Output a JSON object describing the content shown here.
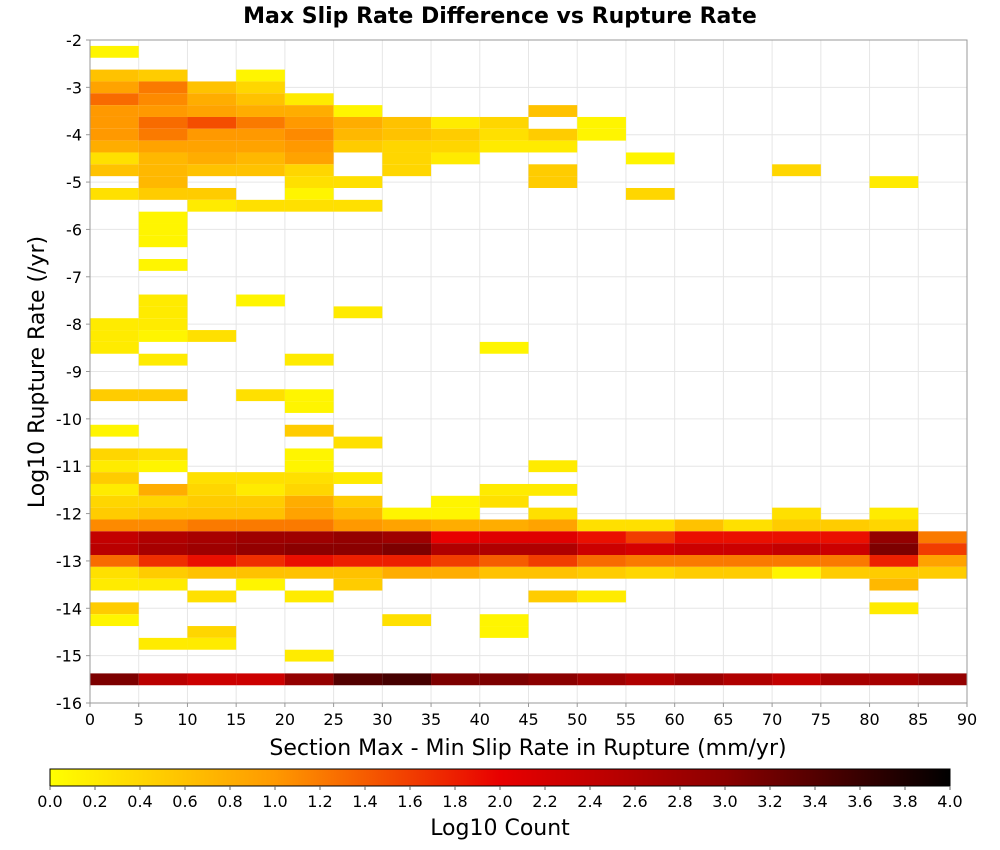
{
  "chart_data": {
    "type": "heatmap",
    "title": "Max Slip Rate Difference vs Rupture Rate",
    "xlabel": "Section Max - Min Slip Rate in Rupture (mm/yr)",
    "ylabel": "Log10 Rupture Rate (/yr)",
    "colorbar_label": "Log10 Count",
    "xlim": [
      0,
      90
    ],
    "ylim": [
      -16,
      -2
    ],
    "x_bin_width": 5,
    "y_bin_height": 0.25,
    "x_ticks": [
      "0",
      "5",
      "10",
      "15",
      "20",
      "25",
      "30",
      "35",
      "40",
      "45",
      "50",
      "55",
      "60",
      "65",
      "70",
      "75",
      "80",
      "85",
      "90"
    ],
    "y_ticks": [
      "-2",
      "-3",
      "-4",
      "-5",
      "-6",
      "-7",
      "-8",
      "-9",
      "-10",
      "-11",
      "-12",
      "-13",
      "-14",
      "-15",
      "-16"
    ],
    "colorbar_range": [
      0,
      4
    ],
    "colorbar_ticks": [
      "0.0",
      "0.2",
      "0.4",
      "0.6",
      "0.8",
      "1.0",
      "1.2",
      "1.4",
      "1.6",
      "1.8",
      "2.0",
      "2.2",
      "2.4",
      "2.6",
      "2.8",
      "3.0",
      "3.2",
      "3.4",
      "3.6",
      "3.8",
      "4.0"
    ],
    "colorscale": [
      "#ffff00",
      "#ff9900",
      "#e80000",
      "#8b0000",
      "#000000"
    ],
    "grid": true,
    "cells": [
      [
        0,
        -2.25,
        0.1
      ],
      [
        0,
        -2.75,
        0.6
      ],
      [
        5,
        -2.75,
        0.5
      ],
      [
        15,
        -2.75,
        0.1
      ],
      [
        0,
        -3.0,
        0.9
      ],
      [
        5,
        -3.0,
        1.2
      ],
      [
        10,
        -3.0,
        0.6
      ],
      [
        15,
        -3.0,
        0.4
      ],
      [
        0,
        -3.25,
        1.3
      ],
      [
        5,
        -3.25,
        1.1
      ],
      [
        10,
        -3.25,
        0.8
      ],
      [
        15,
        -3.25,
        0.6
      ],
      [
        20,
        -3.25,
        0.2
      ],
      [
        0,
        -3.5,
        1.0
      ],
      [
        5,
        -3.5,
        1.0
      ],
      [
        10,
        -3.5,
        0.9
      ],
      [
        15,
        -3.5,
        0.8
      ],
      [
        20,
        -3.5,
        0.8
      ],
      [
        25,
        -3.5,
        0.1
      ],
      [
        45,
        -3.5,
        0.6
      ],
      [
        0,
        -3.75,
        1.0
      ],
      [
        5,
        -3.75,
        1.3
      ],
      [
        10,
        -3.75,
        1.5
      ],
      [
        15,
        -3.75,
        1.2
      ],
      [
        20,
        -3.75,
        1.0
      ],
      [
        25,
        -3.75,
        0.8
      ],
      [
        30,
        -3.75,
        0.6
      ],
      [
        35,
        -3.75,
        0.2
      ],
      [
        40,
        -3.75,
        0.4
      ],
      [
        50,
        -3.75,
        0.1
      ],
      [
        0,
        -4.0,
        1.0
      ],
      [
        5,
        -4.0,
        1.2
      ],
      [
        10,
        -4.0,
        1.0
      ],
      [
        15,
        -4.0,
        1.0
      ],
      [
        20,
        -4.0,
        1.1
      ],
      [
        25,
        -4.0,
        0.7
      ],
      [
        30,
        -4.0,
        0.6
      ],
      [
        35,
        -4.0,
        0.5
      ],
      [
        40,
        -4.0,
        0.3
      ],
      [
        45,
        -4.0,
        0.5
      ],
      [
        50,
        -4.0,
        0.1
      ],
      [
        0,
        -4.25,
        0.8
      ],
      [
        5,
        -4.25,
        0.9
      ],
      [
        10,
        -4.25,
        0.9
      ],
      [
        15,
        -4.25,
        0.9
      ],
      [
        20,
        -4.25,
        1.0
      ],
      [
        25,
        -4.25,
        0.5
      ],
      [
        30,
        -4.25,
        0.4
      ],
      [
        35,
        -4.25,
        0.4
      ],
      [
        40,
        -4.25,
        0.2
      ],
      [
        45,
        -4.25,
        0.2
      ],
      [
        0,
        -4.5,
        0.3
      ],
      [
        5,
        -4.5,
        0.7
      ],
      [
        10,
        -4.5,
        0.8
      ],
      [
        15,
        -4.5,
        0.7
      ],
      [
        20,
        -4.5,
        0.9
      ],
      [
        30,
        -4.5,
        0.4
      ],
      [
        35,
        -4.5,
        0.2
      ],
      [
        55,
        -4.5,
        0.1
      ],
      [
        0,
        -4.75,
        0.6
      ],
      [
        5,
        -4.75,
        0.7
      ],
      [
        10,
        -4.75,
        0.6
      ],
      [
        15,
        -4.75,
        0.6
      ],
      [
        20,
        -4.75,
        0.4
      ],
      [
        30,
        -4.75,
        0.4
      ],
      [
        45,
        -4.75,
        0.5
      ],
      [
        70,
        -4.75,
        0.4
      ],
      [
        5,
        -5.0,
        0.7
      ],
      [
        20,
        -5.0,
        0.3
      ],
      [
        25,
        -5.0,
        0.3
      ],
      [
        45,
        -5.0,
        0.5
      ],
      [
        80,
        -5.0,
        0.2
      ],
      [
        0,
        -5.25,
        0.3
      ],
      [
        5,
        -5.25,
        0.5
      ],
      [
        10,
        -5.25,
        0.5
      ],
      [
        20,
        -5.25,
        0.1
      ],
      [
        55,
        -5.25,
        0.4
      ],
      [
        10,
        -5.5,
        0.2
      ],
      [
        15,
        -5.5,
        0.3
      ],
      [
        20,
        -5.5,
        0.3
      ],
      [
        25,
        -5.5,
        0.3
      ],
      [
        5,
        -5.75,
        0.1
      ],
      [
        5,
        -6.0,
        0.1
      ],
      [
        5,
        -6.25,
        0.1
      ],
      [
        5,
        -6.75,
        0.1
      ],
      [
        15,
        -7.5,
        0.1
      ],
      [
        5,
        -7.5,
        0.2
      ],
      [
        5,
        -7.75,
        0.2
      ],
      [
        25,
        -7.75,
        0.2
      ],
      [
        0,
        -8.0,
        0.2
      ],
      [
        5,
        -8.0,
        0.2
      ],
      [
        0,
        -8.25,
        0.2
      ],
      [
        5,
        -8.25,
        0.1
      ],
      [
        10,
        -8.25,
        0.3
      ],
      [
        0,
        -8.5,
        0.2
      ],
      [
        40,
        -8.5,
        0.1
      ],
      [
        5,
        -8.75,
        0.2
      ],
      [
        20,
        -8.75,
        0.2
      ],
      [
        0,
        -9.5,
        0.5
      ],
      [
        5,
        -9.5,
        0.5
      ],
      [
        15,
        -9.5,
        0.3
      ],
      [
        20,
        -9.5,
        0.1
      ],
      [
        20,
        -9.75,
        0.1
      ],
      [
        0,
        -10.25,
        0.1
      ],
      [
        20,
        -10.25,
        0.5
      ],
      [
        25,
        -10.5,
        0.3
      ],
      [
        0,
        -10.75,
        0.4
      ],
      [
        5,
        -10.75,
        0.3
      ],
      [
        20,
        -10.75,
        0.1
      ],
      [
        0,
        -11.0,
        0.2
      ],
      [
        5,
        -11.0,
        0.1
      ],
      [
        20,
        -11.0,
        0.1
      ],
      [
        45,
        -11.0,
        0.2
      ],
      [
        0,
        -11.25,
        0.5
      ],
      [
        10,
        -11.25,
        0.3
      ],
      [
        15,
        -11.25,
        0.3
      ],
      [
        20,
        -11.25,
        0.3
      ],
      [
        25,
        -11.25,
        0.2
      ],
      [
        0,
        -11.5,
        0.2
      ],
      [
        5,
        -11.5,
        0.8
      ],
      [
        10,
        -11.5,
        0.4
      ],
      [
        15,
        -11.5,
        0.2
      ],
      [
        20,
        -11.5,
        0.4
      ],
      [
        40,
        -11.5,
        0.2
      ],
      [
        45,
        -11.5,
        0.2
      ],
      [
        0,
        -11.75,
        0.4
      ],
      [
        5,
        -11.75,
        0.4
      ],
      [
        10,
        -11.75,
        0.5
      ],
      [
        15,
        -11.75,
        0.5
      ],
      [
        20,
        -11.75,
        0.8
      ],
      [
        25,
        -11.75,
        0.5
      ],
      [
        35,
        -11.75,
        0.1
      ],
      [
        40,
        -11.75,
        0.3
      ],
      [
        0,
        -12.0,
        0.5
      ],
      [
        5,
        -12.0,
        0.6
      ],
      [
        10,
        -12.0,
        0.6
      ],
      [
        15,
        -12.0,
        0.6
      ],
      [
        20,
        -12.0,
        0.9
      ],
      [
        25,
        -12.0,
        0.7
      ],
      [
        30,
        -12.0,
        0.1
      ],
      [
        35,
        -12.0,
        0.1
      ],
      [
        45,
        -12.0,
        0.3
      ],
      [
        70,
        -12.0,
        0.3
      ],
      [
        80,
        -12.0,
        0.2
      ],
      [
        0,
        -12.25,
        1.1
      ],
      [
        5,
        -12.25,
        1.1
      ],
      [
        10,
        -12.25,
        1.2
      ],
      [
        15,
        -12.25,
        1.2
      ],
      [
        20,
        -12.25,
        1.2
      ],
      [
        25,
        -12.25,
        1.0
      ],
      [
        30,
        -12.25,
        0.9
      ],
      [
        35,
        -12.25,
        0.8
      ],
      [
        40,
        -12.25,
        0.8
      ],
      [
        45,
        -12.25,
        0.9
      ],
      [
        50,
        -12.25,
        0.3
      ],
      [
        55,
        -12.25,
        0.3
      ],
      [
        60,
        -12.25,
        0.6
      ],
      [
        65,
        -12.25,
        0.3
      ],
      [
        70,
        -12.25,
        0.5
      ],
      [
        75,
        -12.25,
        0.5
      ],
      [
        80,
        -12.25,
        0.4
      ],
      [
        0,
        -12.5,
        2.4
      ],
      [
        5,
        -12.5,
        2.6
      ],
      [
        10,
        -12.5,
        2.7
      ],
      [
        15,
        -12.5,
        2.8
      ],
      [
        20,
        -12.5,
        2.8
      ],
      [
        25,
        -12.5,
        2.9
      ],
      [
        30,
        -12.5,
        2.8
      ],
      [
        35,
        -12.5,
        2.0
      ],
      [
        40,
        -12.5,
        2.1
      ],
      [
        45,
        -12.5,
        2.1
      ],
      [
        50,
        -12.5,
        1.9
      ],
      [
        55,
        -12.5,
        1.6
      ],
      [
        60,
        -12.5,
        1.9
      ],
      [
        65,
        -12.5,
        1.9
      ],
      [
        70,
        -12.5,
        1.9
      ],
      [
        75,
        -12.5,
        1.9
      ],
      [
        80,
        -12.5,
        2.9
      ],
      [
        85,
        -12.5,
        1.2
      ],
      [
        0,
        -12.75,
        2.5
      ],
      [
        5,
        -12.75,
        2.7
      ],
      [
        10,
        -12.75,
        2.8
      ],
      [
        15,
        -12.75,
        2.9
      ],
      [
        20,
        -12.75,
        3.0
      ],
      [
        25,
        -12.75,
        3.0
      ],
      [
        30,
        -12.75,
        3.1
      ],
      [
        35,
        -12.75,
        2.6
      ],
      [
        40,
        -12.75,
        2.6
      ],
      [
        45,
        -12.75,
        2.6
      ],
      [
        50,
        -12.75,
        2.3
      ],
      [
        55,
        -12.75,
        2.2
      ],
      [
        60,
        -12.75,
        2.3
      ],
      [
        65,
        -12.75,
        2.3
      ],
      [
        70,
        -12.75,
        2.4
      ],
      [
        75,
        -12.75,
        2.3
      ],
      [
        80,
        -12.75,
        3.1
      ],
      [
        85,
        -12.75,
        1.6
      ],
      [
        0,
        -13.0,
        1.3
      ],
      [
        5,
        -13.0,
        1.7
      ],
      [
        10,
        -13.0,
        1.9
      ],
      [
        15,
        -13.0,
        1.7
      ],
      [
        20,
        -13.0,
        1.9
      ],
      [
        25,
        -13.0,
        1.8
      ],
      [
        30,
        -13.0,
        1.8
      ],
      [
        35,
        -13.0,
        1.6
      ],
      [
        40,
        -13.0,
        1.4
      ],
      [
        45,
        -13.0,
        1.6
      ],
      [
        50,
        -13.0,
        1.3
      ],
      [
        55,
        -13.0,
        1.2
      ],
      [
        60,
        -13.0,
        1.2
      ],
      [
        65,
        -13.0,
        1.2
      ],
      [
        70,
        -13.0,
        1.2
      ],
      [
        75,
        -13.0,
        1.2
      ],
      [
        80,
        -13.0,
        1.8
      ],
      [
        85,
        -13.0,
        0.9
      ],
      [
        0,
        -13.25,
        0.3
      ],
      [
        5,
        -13.25,
        0.5
      ],
      [
        10,
        -13.25,
        0.6
      ],
      [
        15,
        -13.25,
        0.6
      ],
      [
        20,
        -13.25,
        0.6
      ],
      [
        25,
        -13.25,
        0.6
      ],
      [
        30,
        -13.25,
        0.8
      ],
      [
        35,
        -13.25,
        0.8
      ],
      [
        40,
        -13.25,
        0.6
      ],
      [
        50,
        -13.25,
        0.5
      ],
      [
        55,
        -13.25,
        0.4
      ],
      [
        60,
        -13.25,
        0.5
      ],
      [
        65,
        -13.25,
        0.5
      ],
      [
        75,
        -13.25,
        0.5
      ],
      [
        80,
        -13.25,
        0.5
      ],
      [
        85,
        -13.25,
        0.5
      ],
      [
        45,
        -13.25,
        0.6
      ],
      [
        70,
        -13.25,
        0.1
      ],
      [
        0,
        -13.5,
        0.2
      ],
      [
        5,
        -13.5,
        0.2
      ],
      [
        15,
        -13.5,
        0.1
      ],
      [
        25,
        -13.5,
        0.5
      ],
      [
        80,
        -13.5,
        0.7
      ],
      [
        10,
        -13.75,
        0.3
      ],
      [
        20,
        -13.75,
        0.2
      ],
      [
        45,
        -13.75,
        0.5
      ],
      [
        50,
        -13.75,
        0.2
      ],
      [
        0,
        -14.0,
        0.5
      ],
      [
        80,
        -14.0,
        0.2
      ],
      [
        0,
        -14.25,
        0.1
      ],
      [
        30,
        -14.25,
        0.3
      ],
      [
        40,
        -14.25,
        0.1
      ],
      [
        10,
        -14.5,
        0.4
      ],
      [
        40,
        -14.5,
        0.1
      ],
      [
        5,
        -14.75,
        0.2
      ],
      [
        10,
        -14.75,
        0.2
      ],
      [
        20,
        -15.0,
        0.2
      ],
      [
        0,
        -15.5,
        3.1
      ],
      [
        5,
        -15.5,
        2.5
      ],
      [
        10,
        -15.5,
        2.3
      ],
      [
        15,
        -15.5,
        2.3
      ],
      [
        20,
        -15.5,
        2.9
      ],
      [
        25,
        -15.5,
        3.4
      ],
      [
        30,
        -15.5,
        3.5
      ],
      [
        35,
        -15.5,
        3.1
      ],
      [
        40,
        -15.5,
        3.1
      ],
      [
        45,
        -15.5,
        3.0
      ],
      [
        50,
        -15.5,
        2.8
      ],
      [
        55,
        -15.5,
        2.6
      ],
      [
        60,
        -15.5,
        2.8
      ],
      [
        65,
        -15.5,
        2.6
      ],
      [
        70,
        -15.5,
        2.4
      ],
      [
        75,
        -15.5,
        2.7
      ],
      [
        80,
        -15.5,
        2.7
      ],
      [
        85,
        -15.5,
        2.9
      ]
    ]
  }
}
